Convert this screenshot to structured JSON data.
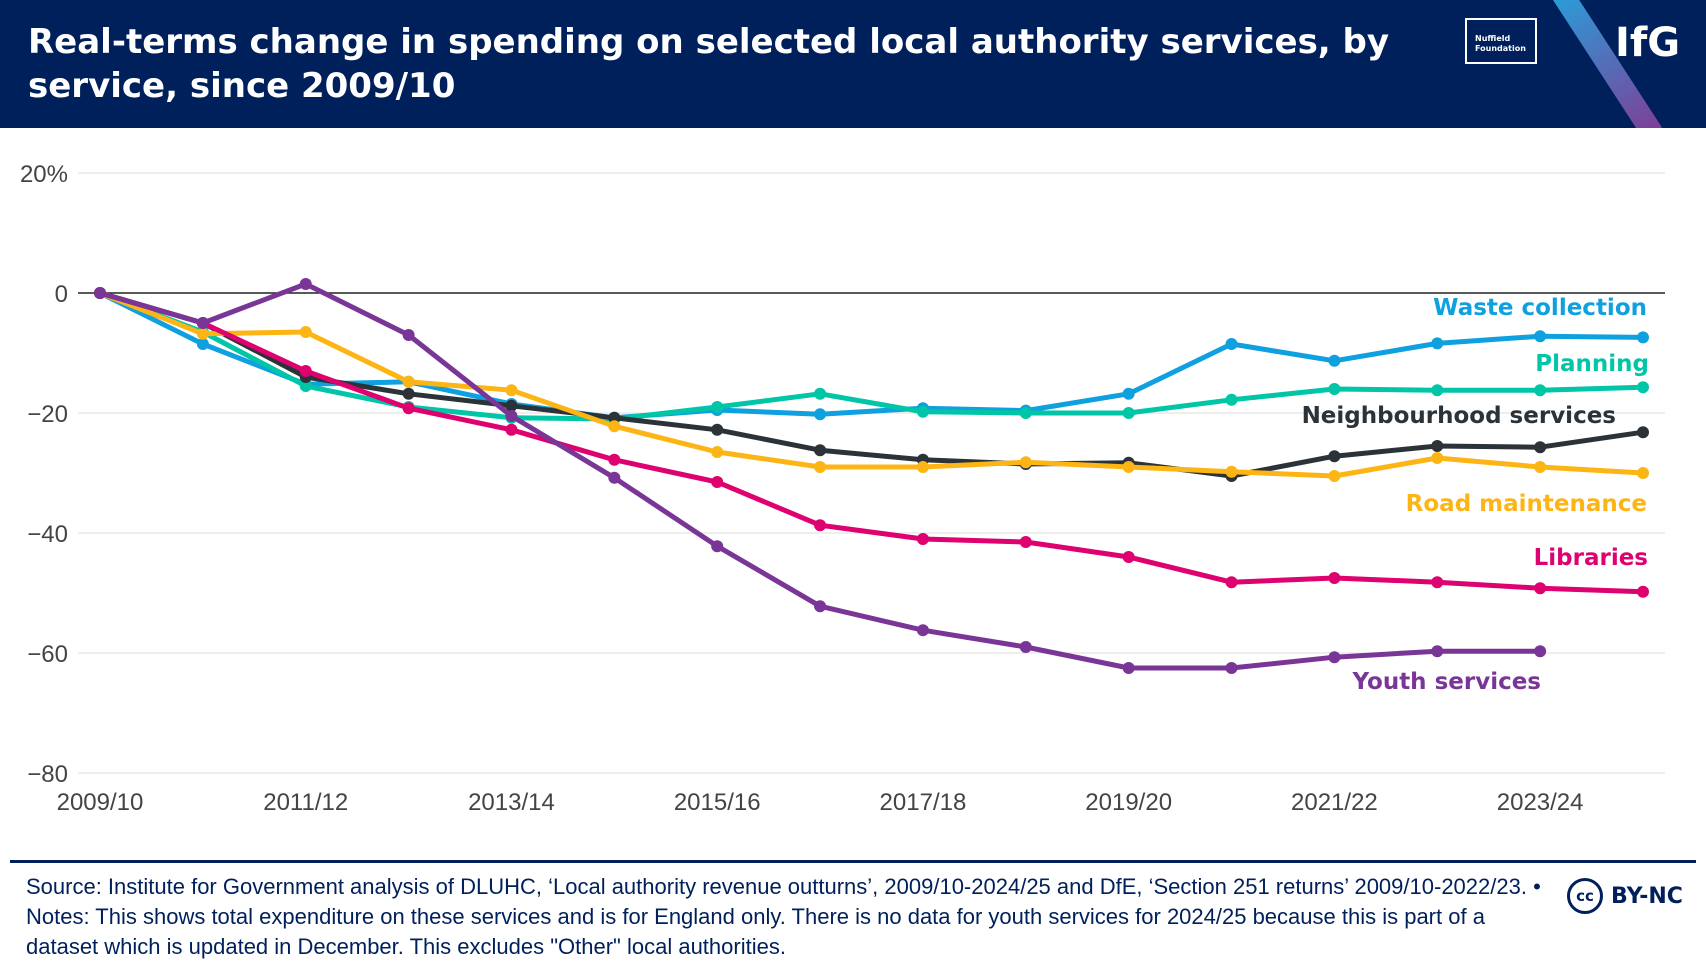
{
  "header": {
    "title": "Real-terms change in spending on selected local authority services, by service, since 2009/10",
    "partner_logo_text": "Nuffield Foundation",
    "brand_logo_text": "IfG"
  },
  "colors": {
    "header_bg": "#00205b",
    "stripe_blue": "#1fa9e1",
    "stripe_purple": "#7e3f98"
  },
  "chart_data": {
    "type": "line",
    "title": "Real-terms change in spending on selected local authority services, by service, since 2009/10",
    "xlabel": "",
    "ylabel": "",
    "ylim": [
      -80,
      20
    ],
    "yticks": [
      20,
      0,
      -20,
      -40,
      -60,
      -80
    ],
    "ytick_labels": [
      "20%",
      "0",
      "−20",
      "−40",
      "−60",
      "−80"
    ],
    "x": [
      "2009/10",
      "2010/11",
      "2011/12",
      "2012/13",
      "2013/14",
      "2014/15",
      "2015/16",
      "2016/17",
      "2017/18",
      "2018/19",
      "2019/20",
      "2020/21",
      "2021/22",
      "2022/23",
      "2023/24",
      "2024/25"
    ],
    "xtick_labels": [
      "2009/10",
      "2011/12",
      "2013/14",
      "2015/16",
      "2017/18",
      "2019/20",
      "2021/22",
      "2023/24"
    ],
    "grid": true,
    "legend": "direct labels at line ends",
    "series": [
      {
        "name": "Waste collection",
        "color": "#0fa0e0",
        "values": [
          0,
          -8.5,
          -15.2,
          -14.8,
          -18.5,
          -20.8,
          -19.5,
          -20.2,
          -19.2,
          -19.6,
          -16.8,
          -8.5,
          -11.3,
          -8.4,
          -7.2,
          -7.4
        ]
      },
      {
        "name": "Planning",
        "color": "#00c6a7",
        "values": [
          0,
          -6.5,
          -15.5,
          -19,
          -20.8,
          -21,
          -19,
          -16.8,
          -19.8,
          -20,
          -20,
          -17.8,
          -16,
          -16.2,
          -16.2,
          -15.7
        ]
      },
      {
        "name": "Neighbourhood services",
        "color": "#2b3339",
        "values": [
          0,
          -5,
          -14,
          -16.8,
          -18.8,
          -20.8,
          -22.8,
          -26.2,
          -27.8,
          -28.5,
          -28.3,
          -30.5,
          -27.2,
          -25.5,
          -25.7,
          -23.2
        ]
      },
      {
        "name": "Road maintenance",
        "color": "#fdb515",
        "values": [
          0,
          -6.8,
          -6.5,
          -14.8,
          -16.2,
          -22.2,
          -26.5,
          -29,
          -29,
          -28.2,
          -29,
          -29.8,
          -30.5,
          -27.5,
          -29,
          -30
        ]
      },
      {
        "name": "Libraries",
        "color": "#dd0270",
        "values": [
          0,
          -5,
          -13,
          -19.2,
          -22.8,
          -27.8,
          -31.5,
          -38.7,
          -41,
          -41.5,
          -44,
          -48.2,
          -47.5,
          -48.2,
          -49.2,
          -49.8
        ]
      },
      {
        "name": "Youth services",
        "color": "#7a3696",
        "values": [
          0,
          -5,
          1.5,
          -7,
          -20.5,
          -30.8,
          -42.2,
          -52.2,
          -56.2,
          -59,
          -62.5,
          -62.5,
          -60.7,
          -59.7,
          -59.7,
          null
        ]
      }
    ]
  },
  "footer": {
    "source": "Source: Institute for Government analysis of DLUHC, ‘Local authority revenue outturns’, 2009/10-2024/25 and DfE, ‘Section 251 returns’ 2009/10-2022/23. • Notes: This shows total expenditure on these services and is for England only. There is no data for youth services for 2024/25 because this is part of a dataset which is updated in December. This excludes \"Other\" local authorities.",
    "license_icon_text": "cc",
    "license_text": "BY-NC"
  }
}
